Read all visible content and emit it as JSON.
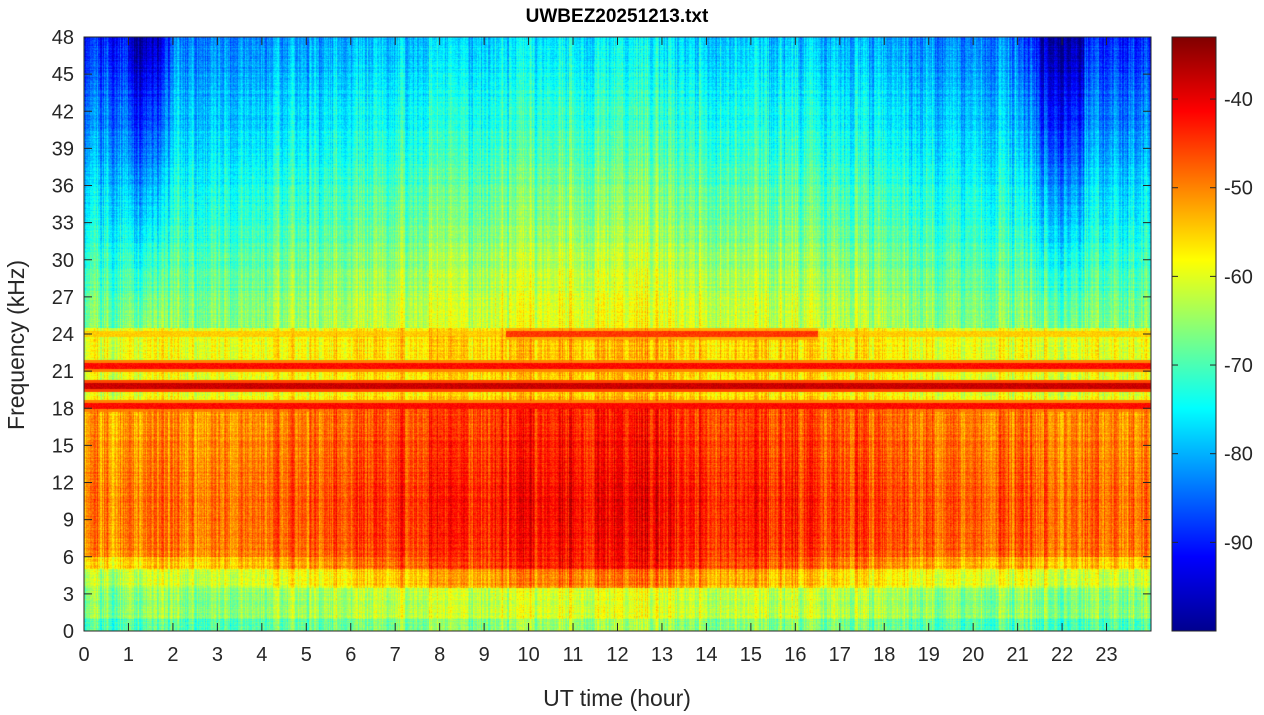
{
  "chart_data": {
    "type": "heatmap",
    "title": "UWBEZ20251213.txt",
    "xlabel": "UT time (hour)",
    "ylabel": "Frequency (kHz)",
    "xlim": [
      0,
      24
    ],
    "ylim": [
      0,
      48
    ],
    "x_ticks": [
      0,
      1,
      2,
      3,
      4,
      5,
      6,
      7,
      8,
      9,
      10,
      11,
      12,
      13,
      14,
      15,
      16,
      17,
      18,
      19,
      20,
      21,
      22,
      23
    ],
    "y_ticks": [
      0,
      3,
      6,
      9,
      12,
      15,
      18,
      21,
      24,
      27,
      30,
      33,
      36,
      39,
      42,
      45,
      48
    ],
    "colorbar": {
      "colormap": "jet",
      "range": [
        -100,
        -33
      ],
      "ticks": [
        -90,
        -80,
        -70,
        -60,
        -50,
        -40
      ]
    },
    "grid": false,
    "notable_features": [
      {
        "type": "band",
        "freq_khz": 18.2,
        "time_range": [
          0,
          24
        ],
        "level_db": -42
      },
      {
        "type": "band",
        "freq_khz": 19.8,
        "time_range": [
          0,
          24
        ],
        "level_db": -38
      },
      {
        "type": "band",
        "freq_khz": 21.4,
        "time_range": [
          0,
          24
        ],
        "level_db": -42
      },
      {
        "type": "band",
        "freq_khz": 24.0,
        "time_range": [
          9.5,
          16.5
        ],
        "level_db": -45
      },
      {
        "type": "band",
        "freq_khz": 24.0,
        "time_range": [
          0,
          24
        ],
        "level_db": -55
      }
    ]
  }
}
